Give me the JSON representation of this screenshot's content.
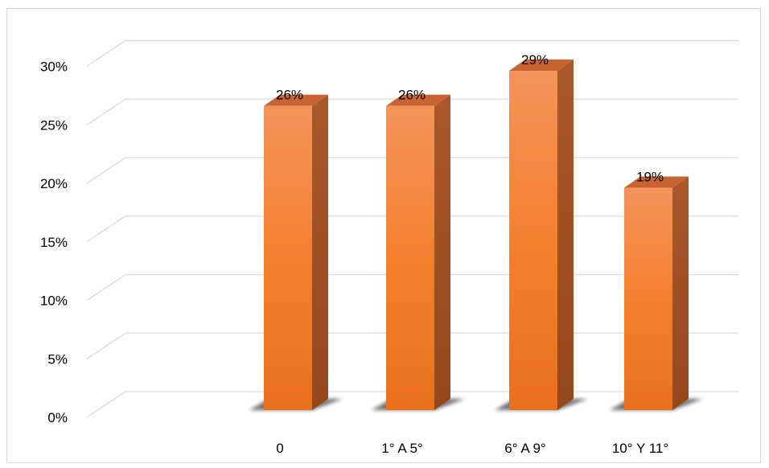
{
  "chart_data": {
    "type": "bar",
    "title": "",
    "xlabel": "",
    "ylabel": "",
    "categories": [
      "0",
      "1° A 5°",
      "6° A 9°",
      "10° Y 11°"
    ],
    "values": [
      26,
      26,
      29,
      19
    ],
    "value_labels": [
      "26%",
      "26%",
      "29%",
      "19%"
    ],
    "y_ticks": [
      "0%",
      "5%",
      "10%",
      "15%",
      "20%",
      "25%",
      "30%"
    ],
    "ylim": [
      0,
      30
    ],
    "grid": true,
    "legend": "none",
    "style": "3d-column",
    "colors": {
      "front_top": "#F4935A",
      "front_mid": "#F47E2A",
      "front_bottom": "#E8701E",
      "side": "#A35425",
      "top": "#C86432",
      "grid": "#d9d9d9"
    }
  }
}
